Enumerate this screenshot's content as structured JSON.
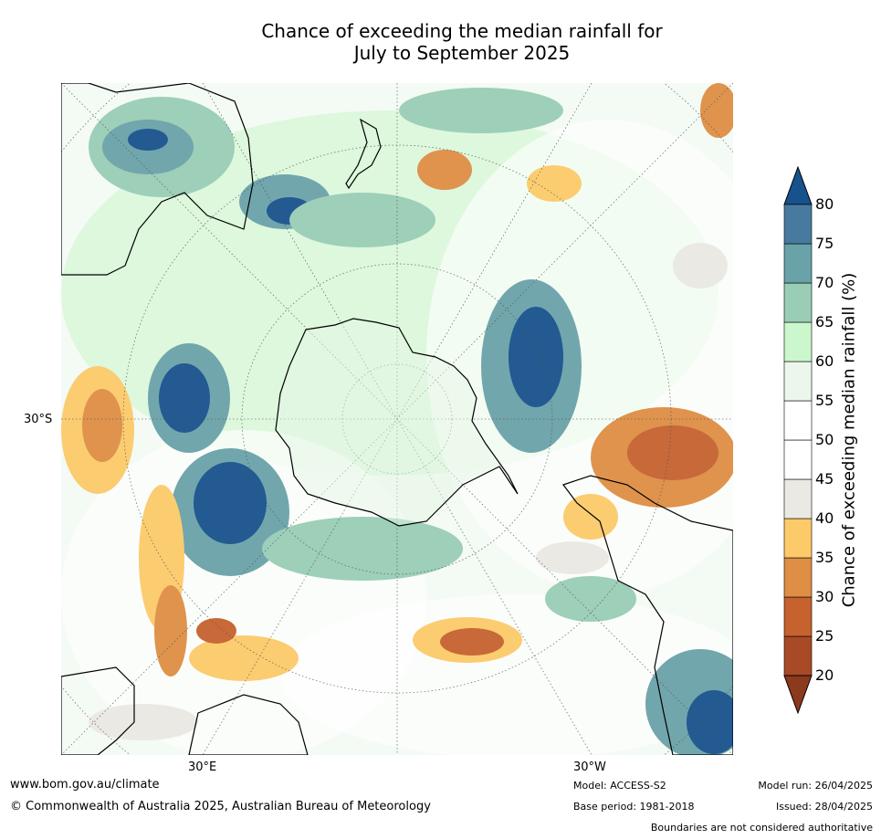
{
  "title_line1": "Chance of exceeding the median rainfall for",
  "title_line2": "July to September 2025",
  "map": {
    "projection": "south polar stereographic",
    "lat_label": "30°S",
    "lon_label_left": "30°E",
    "lon_label_right": "30°W"
  },
  "legend": {
    "title": "Chance of exceeding median rainfall (%)",
    "ticks": [
      "20",
      "25",
      "30",
      "35",
      "40",
      "45",
      "50",
      "55",
      "60",
      "65",
      "70",
      "75",
      "80"
    ],
    "bins": [
      {
        "range": "<20",
        "color": "#8b3a1e"
      },
      {
        "range": "20-25",
        "color": "#a84a25"
      },
      {
        "range": "25-30",
        "color": "#c5622e"
      },
      {
        "range": "30-35",
        "color": "#de8e45"
      },
      {
        "range": "35-40",
        "color": "#fdca6a"
      },
      {
        "range": "40-45",
        "color": "#ebe9e4"
      },
      {
        "range": "45-50",
        "color": "#ffffff"
      },
      {
        "range": "50-55",
        "color": "#ffffff"
      },
      {
        "range": "55-60",
        "color": "#ecf6ec"
      },
      {
        "range": "60-65",
        "color": "#ccf6cc"
      },
      {
        "range": "65-70",
        "color": "#99cdb6"
      },
      {
        "range": "70-75",
        "color": "#6aa2aa"
      },
      {
        "range": "75-80",
        "color": "#477a9e"
      },
      {
        "range": ">80",
        "color": "#17528c"
      }
    ]
  },
  "footer": {
    "website": "www.bom.gov.au/climate",
    "copyright": "© Commonwealth of Australia 2025, Australian Bureau of Meteorology",
    "model": "Model: ACCESS-S2",
    "base_period": "Base period: 1981-2018",
    "model_run": "Model run: 26/04/2025",
    "issued": "Issued: 28/04/2025",
    "disclaimer": "Boundaries are not considered authoritative"
  }
}
